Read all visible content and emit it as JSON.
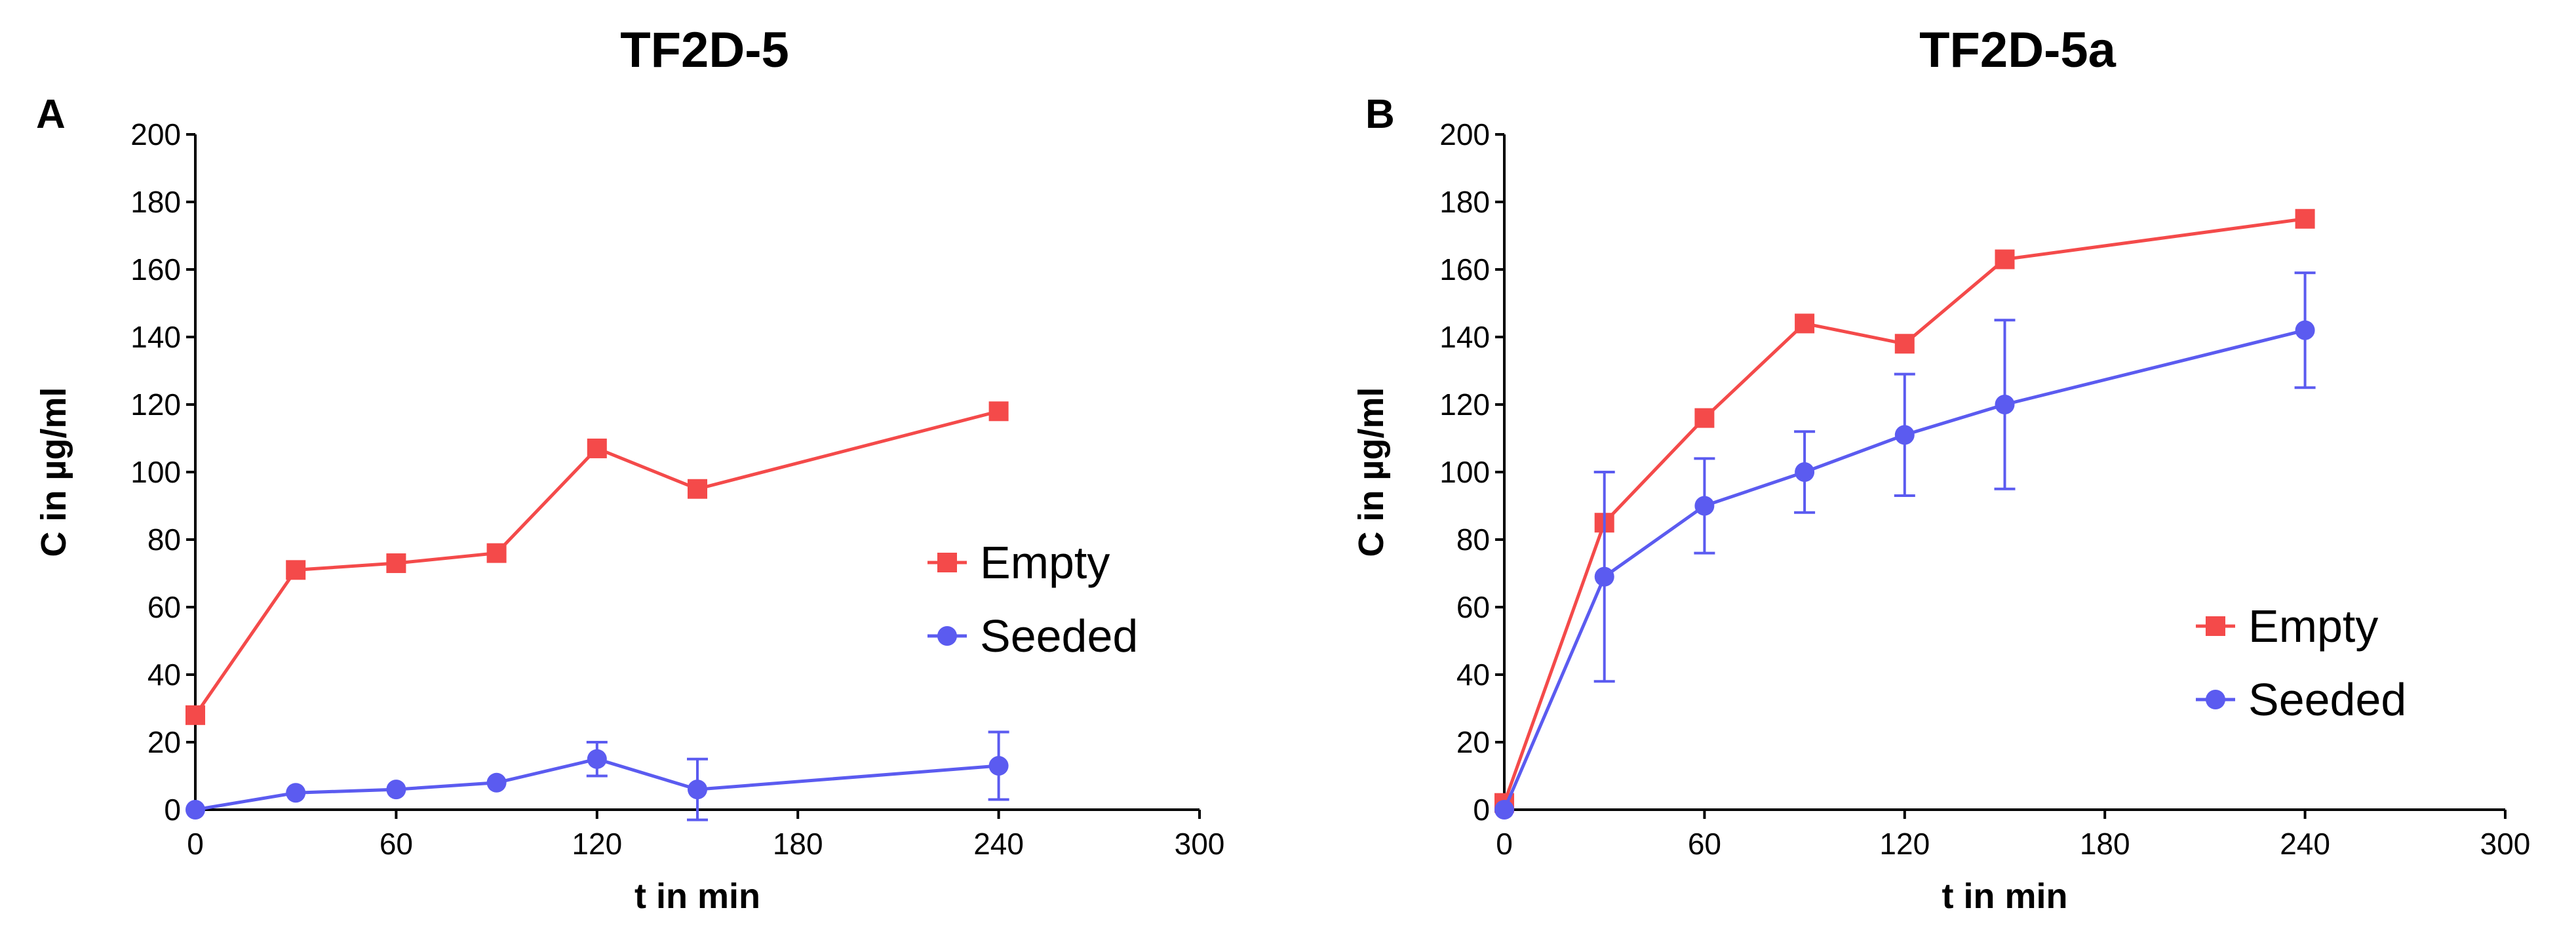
{
  "chart_data": [
    {
      "type": "line",
      "panel": "A",
      "title": "TF2D-5",
      "xlabel": "t in min",
      "ylabel": "C in µg/ml",
      "xlim": [
        0,
        300
      ],
      "ylim": [
        0,
        200
      ],
      "xticks": [
        0,
        60,
        120,
        180,
        240,
        300
      ],
      "yticks": [
        0,
        20,
        40,
        60,
        80,
        100,
        120,
        140,
        160,
        180,
        200
      ],
      "legend_position": "center-right",
      "series": [
        {
          "name": "Empty",
          "color": "#f44a4a",
          "marker": "square",
          "x": [
            0,
            30,
            60,
            90,
            120,
            150,
            240
          ],
          "y": [
            28,
            71,
            73,
            76,
            107,
            95,
            118
          ],
          "err": [
            0,
            0,
            0,
            0,
            0,
            0,
            0
          ]
        },
        {
          "name": "Seeded",
          "color": "#5b5bf0",
          "marker": "circle",
          "x": [
            0,
            30,
            60,
            90,
            120,
            150,
            240
          ],
          "y": [
            0,
            5,
            6,
            8,
            15,
            6,
            13
          ],
          "err": [
            0,
            0,
            0,
            0,
            5,
            9,
            10
          ]
        }
      ]
    },
    {
      "type": "line",
      "panel": "B",
      "title": "TF2D-5a",
      "xlabel": "t in min",
      "ylabel": "C in µg/ml",
      "xlim": [
        0,
        300
      ],
      "ylim": [
        0,
        200
      ],
      "xticks": [
        0,
        60,
        120,
        180,
        240,
        300
      ],
      "yticks": [
        0,
        20,
        40,
        60,
        80,
        100,
        120,
        140,
        160,
        180,
        200
      ],
      "legend_position": "lower-right",
      "series": [
        {
          "name": "Empty",
          "color": "#f44a4a",
          "marker": "square",
          "x": [
            0,
            30,
            60,
            90,
            120,
            150,
            240
          ],
          "y": [
            2,
            85,
            116,
            144,
            138,
            163,
            175
          ],
          "err": [
            0,
            0,
            0,
            0,
            0,
            0,
            0
          ]
        },
        {
          "name": "Seeded",
          "color": "#5b5bf0",
          "marker": "circle",
          "x": [
            0,
            30,
            60,
            90,
            120,
            150,
            240
          ],
          "y": [
            0,
            69,
            90,
            100,
            111,
            120,
            142
          ],
          "err": [
            0,
            31,
            14,
            12,
            18,
            25,
            17
          ]
        }
      ]
    }
  ]
}
